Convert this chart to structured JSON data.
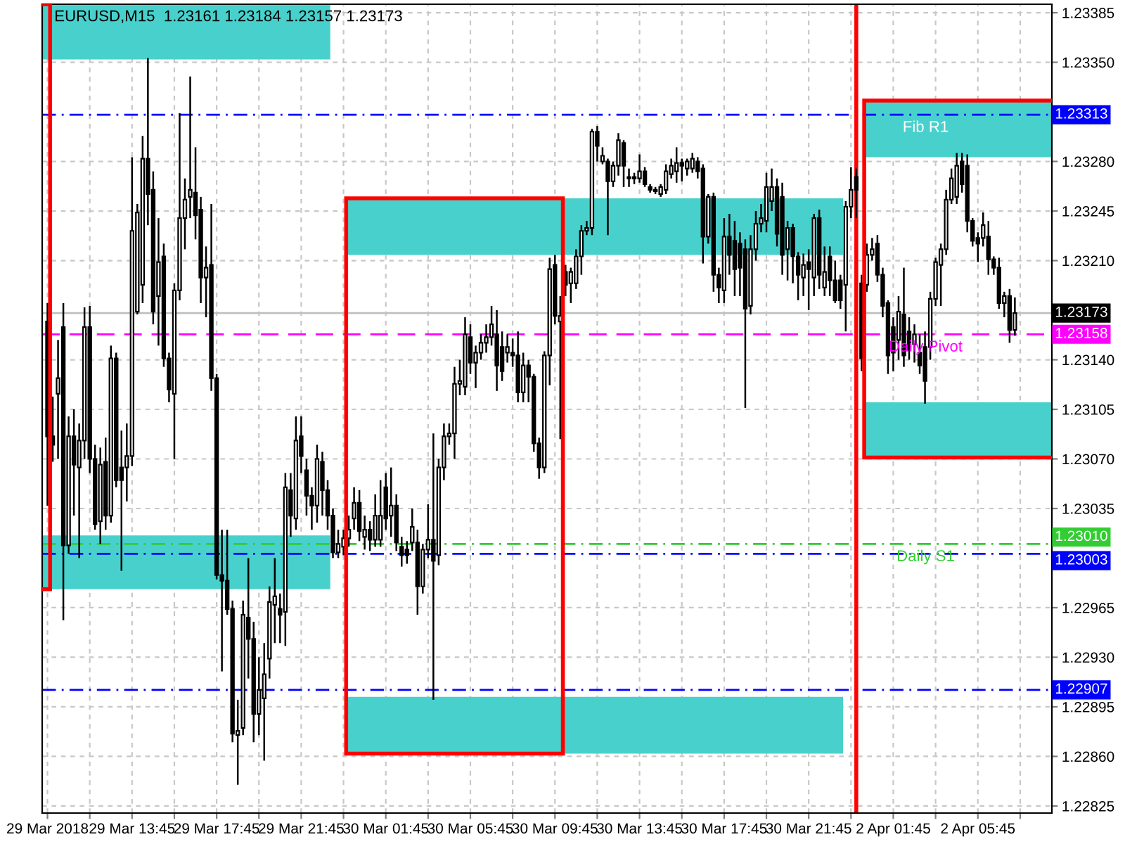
{
  "chart_data": {
    "type": "candlestick",
    "title": "EURUSD,M15  1.23161 1.23184 1.23157 1.23173",
    "categories": [
      "29 Mar 2018",
      null,
      null,
      null,
      null,
      null,
      null,
      null,
      null,
      null,
      null,
      null,
      null,
      null,
      null,
      null,
      "29 Mar 13:45",
      null,
      null,
      null,
      null,
      null,
      null,
      null,
      null,
      null,
      null,
      null,
      null,
      null,
      null,
      null,
      "29 Mar 17:45",
      null,
      null,
      null,
      null,
      null,
      null,
      null,
      null,
      null,
      null,
      null,
      null,
      null,
      null,
      null,
      "29 Mar 21:45",
      null,
      null,
      null,
      null,
      null,
      null,
      null,
      null,
      null,
      null,
      null,
      null,
      null,
      null,
      null,
      "30 Mar 01:45",
      null,
      null,
      null,
      null,
      null,
      null,
      null,
      null,
      null,
      null,
      null,
      null,
      null,
      null,
      null,
      "30 Mar 05:45",
      null,
      null,
      null,
      null,
      null,
      null,
      null,
      null,
      null,
      null,
      null,
      null,
      null,
      null,
      null,
      "30 Mar 09:45",
      null,
      null,
      null,
      null,
      null,
      null,
      null,
      null,
      null,
      null,
      null,
      null,
      null,
      null,
      null,
      "30 Mar 13:45",
      null,
      null,
      null,
      null,
      null,
      null,
      null,
      null,
      null,
      null,
      null,
      null,
      null,
      null,
      null,
      "30 Mar 17:45",
      null,
      null,
      null,
      null,
      null,
      null,
      null,
      null,
      null,
      null,
      null,
      null,
      null,
      null,
      null,
      "30 Mar 21:45",
      null,
      null,
      null,
      null,
      null,
      null,
      null,
      null,
      null,
      null,
      null,
      null,
      null,
      null,
      null,
      "2 Apr 01:45",
      null,
      null,
      null,
      null,
      null,
      null,
      null,
      null,
      null,
      null,
      null,
      null,
      null,
      null,
      null,
      "2 Apr 05:45",
      null,
      null,
      null,
      null,
      null,
      null,
      null
    ],
    "ohlc": [
      [
        1.23167,
        1.2318,
        1.23037,
        1.23086
      ],
      [
        1.23086,
        1.23114,
        1.23068,
        1.2308
      ],
      [
        1.23116,
        1.23154,
        1.2307,
        1.23127
      ],
      [
        1.23163,
        1.2318,
        1.22956,
        1.23009
      ],
      [
        1.23009,
        1.231,
        1.23003,
        1.23086
      ],
      [
        1.23086,
        1.23105,
        1.2303,
        1.23066
      ],
      [
        1.23064,
        1.23095,
        1.23,
        1.23083
      ],
      [
        1.23083,
        1.23177,
        1.2307,
        1.23163
      ],
      [
        1.23163,
        1.23178,
        1.2306,
        1.2307
      ],
      [
        1.2307,
        1.2308,
        1.2302,
        1.23024
      ],
      [
        1.23026,
        1.23078,
        1.2301,
        1.23066
      ],
      [
        1.23068,
        1.23085,
        1.2302,
        1.2303
      ],
      [
        1.2303,
        1.2315,
        1.23025,
        1.23141
      ],
      [
        1.23141,
        1.23145,
        1.2305,
        1.23055
      ],
      [
        1.23064,
        1.2309,
        1.22991,
        1.23055
      ],
      [
        1.23064,
        1.23095,
        1.2304,
        1.23072
      ],
      [
        1.23072,
        1.23283,
        1.23065,
        1.23231
      ],
      [
        1.23174,
        1.2325,
        1.23172,
        1.23244
      ],
      [
        1.23193,
        1.23298,
        1.2318,
        1.23282
      ],
      [
        1.23282,
        1.23353,
        1.23235,
        1.23257
      ],
      [
        1.2326,
        1.23273,
        1.23165,
        1.23174
      ],
      [
        1.23185,
        1.2324,
        1.2315,
        1.23209
      ],
      [
        1.23213,
        1.23222,
        1.23135,
        1.23141
      ],
      [
        1.23141,
        1.23145,
        1.2311,
        1.23119
      ],
      [
        1.23116,
        1.23194,
        1.2307,
        1.23189
      ],
      [
        1.23189,
        1.23314,
        1.23182,
        1.2324
      ],
      [
        1.2324,
        1.23268,
        1.23218,
        1.23253
      ],
      [
        1.23255,
        1.2334,
        1.2324,
        1.2326
      ],
      [
        1.23258,
        1.2329,
        1.23225,
        1.23242
      ],
      [
        1.23246,
        1.23255,
        1.2318,
        1.23198
      ],
      [
        1.23198,
        1.2322,
        1.2317,
        1.23205
      ],
      [
        1.23207,
        1.2325,
        1.23118,
        1.23127
      ],
      [
        1.23127,
        1.2313,
        1.22985,
        1.22988
      ],
      [
        1.22988,
        1.2302,
        1.2292,
        1.22984
      ],
      [
        1.22984,
        1.2302,
        1.2296,
        1.22964
      ],
      [
        1.22964,
        1.2297,
        1.2287,
        1.22876
      ],
      [
        1.22875,
        1.229,
        1.2284,
        1.22878
      ],
      [
        1.2288,
        1.2297,
        1.22875,
        1.2296
      ],
      [
        1.22958,
        1.23,
        1.22915,
        1.22943
      ],
      [
        1.22943,
        1.22955,
        1.2287,
        1.2289
      ],
      [
        1.2289,
        1.2293,
        1.22875,
        1.22907
      ],
      [
        1.22901,
        1.2294,
        1.22857,
        1.22918
      ],
      [
        1.22929,
        1.2298,
        1.22915,
        1.22969
      ],
      [
        1.22967,
        1.23,
        1.2294,
        1.22973
      ],
      [
        1.22964,
        1.22975,
        1.2294,
        1.2296
      ],
      [
        1.22962,
        1.2306,
        1.22938,
        1.2305
      ],
      [
        1.23048,
        1.2306,
        1.23015,
        1.2303
      ],
      [
        1.23028,
        1.231,
        1.2302,
        1.23083
      ],
      [
        1.23086,
        1.231,
        1.2306,
        1.23072
      ],
      [
        1.23062,
        1.2307,
        1.2303,
        1.23044
      ],
      [
        1.23044,
        1.2305,
        1.2302,
        1.23037
      ],
      [
        1.23037,
        1.2308,
        1.23025,
        1.2307
      ],
      [
        1.23068,
        1.23075,
        1.2303,
        1.23048
      ],
      [
        1.23048,
        1.23055,
        1.2302,
        1.2303
      ],
      [
        1.2303,
        1.23035,
        1.23,
        1.23004
      ],
      [
        1.23004,
        1.2302,
        1.23,
        1.2301
      ],
      [
        1.23008,
        1.2302,
        1.23002,
        1.23014
      ],
      [
        1.23014,
        1.2303,
        1.23008,
        1.2302
      ],
      [
        1.23028,
        1.2305,
        1.2302,
        1.23039
      ],
      [
        1.23039,
        1.23048,
        1.23012,
        1.23019
      ],
      [
        1.23015,
        1.2303,
        1.23006,
        1.2302
      ],
      [
        1.2302,
        1.23026,
        1.23005,
        1.23013
      ],
      [
        1.23013,
        1.23045,
        1.23008,
        1.2303
      ],
      [
        1.23013,
        1.23055,
        1.23008,
        1.2303
      ],
      [
        1.2305,
        1.2306,
        1.2302,
        1.23028
      ],
      [
        1.2303,
        1.23064,
        1.23015,
        1.23037
      ],
      [
        1.23037,
        1.23045,
        1.23005,
        1.23011
      ],
      [
        1.23008,
        1.23015,
        1.22994,
        1.23002
      ],
      [
        1.23006,
        1.23012,
        1.22996,
        1.23002
      ],
      [
        1.23011,
        1.23035,
        1.23005,
        1.23022
      ],
      [
        1.23011,
        1.2302,
        1.2296,
        1.2298
      ],
      [
        1.2298,
        1.2301,
        1.22975,
        1.23006
      ],
      [
        1.23006,
        1.23038,
        1.23,
        1.23013
      ],
      [
        1.23013,
        1.23088,
        1.229,
        1.22998
      ],
      [
        1.23002,
        1.2307,
        1.22995,
        1.23064
      ],
      [
        1.23064,
        1.23095,
        1.23055,
        1.23086
      ],
      [
        1.23086,
        1.23095,
        1.2308,
        1.23088
      ],
      [
        1.23088,
        1.23135,
        1.2307,
        1.23123
      ],
      [
        1.23123,
        1.2314,
        1.23115,
        1.23125
      ],
      [
        1.23121,
        1.2317,
        1.23115,
        1.23158
      ],
      [
        1.23156,
        1.23165,
        1.2313,
        1.23138
      ],
      [
        1.23138,
        1.2315,
        1.2312,
        1.23145
      ],
      [
        1.23145,
        1.23158,
        1.2314,
        1.23152
      ],
      [
        1.23152,
        1.23165,
        1.23145,
        1.23156
      ],
      [
        1.23156,
        1.23178,
        1.2315,
        1.23165
      ],
      [
        1.23158,
        1.23175,
        1.23118,
        1.23136
      ],
      [
        1.23149,
        1.2316,
        1.23125,
        1.23132
      ],
      [
        1.23145,
        1.23158,
        1.23138,
        1.23149
      ],
      [
        1.23145,
        1.23155,
        1.23135,
        1.23143
      ],
      [
        1.23143,
        1.2316,
        1.2311,
        1.23117
      ],
      [
        1.23117,
        1.23145,
        1.2311,
        1.23136
      ],
      [
        1.23136,
        1.2314,
        1.2311,
        1.23128
      ],
      [
        1.23128,
        1.2313,
        1.23075,
        1.23081
      ],
      [
        1.23081,
        1.23085,
        1.23056,
        1.23064
      ],
      [
        1.23064,
        1.23146,
        1.2306,
        1.23143
      ],
      [
        1.23143,
        1.23212,
        1.23122,
        1.23204
      ],
      [
        1.23207,
        1.23214,
        1.23165,
        1.23171
      ],
      [
        1.23167,
        1.23185,
        1.23084,
        1.23171
      ],
      [
        1.23202,
        1.23207,
        1.23185,
        1.23193
      ],
      [
        1.23194,
        1.23205,
        1.2318,
        1.23202
      ],
      [
        1.23194,
        1.23218,
        1.2319,
        1.23213
      ],
      [
        1.23213,
        1.23235,
        1.232,
        1.23231
      ],
      [
        1.23231,
        1.23238,
        1.23228,
        1.23233
      ],
      [
        1.23233,
        1.23303,
        1.23228,
        1.23301
      ],
      [
        1.23301,
        1.23305,
        1.2328,
        1.23291
      ],
      [
        1.2328,
        1.2329,
        1.23278,
        1.23284
      ],
      [
        1.2328,
        1.23282,
        1.23228,
        1.23266
      ],
      [
        1.23266,
        1.2328,
        1.23262,
        1.23277
      ],
      [
        1.23277,
        1.233,
        1.2327,
        1.23295
      ],
      [
        1.23293,
        1.23295,
        1.23262,
        1.23277
      ],
      [
        1.23269,
        1.23275,
        1.23262,
        1.23268
      ],
      [
        1.23268,
        1.23272,
        1.23264,
        1.23269
      ],
      [
        1.23268,
        1.23285,
        1.23265,
        1.23273
      ],
      [
        1.23273,
        1.23276,
        1.23262,
        1.23264
      ],
      [
        1.23262,
        1.23264,
        1.23258,
        1.2326
      ],
      [
        1.2326,
        1.23262,
        1.23257,
        1.23259
      ],
      [
        1.23257,
        1.23264,
        1.23255,
        1.23262
      ],
      [
        1.2326,
        1.23278,
        1.23257,
        1.23273
      ],
      [
        1.23271,
        1.23282,
        1.23268,
        1.23277
      ],
      [
        1.23273,
        1.2329,
        1.23265,
        1.23279
      ],
      [
        1.23279,
        1.23282,
        1.23266,
        1.23277
      ],
      [
        1.23275,
        1.23282,
        1.2327,
        1.2328
      ],
      [
        1.23275,
        1.23286,
        1.23272,
        1.23282
      ],
      [
        1.2328,
        1.23283,
        1.23268,
        1.23273
      ],
      [
        1.23275,
        1.23278,
        1.23208,
        1.23227
      ],
      [
        1.23227,
        1.23257,
        1.23222,
        1.23255
      ],
      [
        1.23255,
        1.23258,
        1.23188,
        1.232
      ],
      [
        1.232,
        1.23205,
        1.2318,
        1.23191
      ],
      [
        1.23189,
        1.2324,
        1.2318,
        1.23227
      ],
      [
        1.23227,
        1.23243,
        1.232,
        1.23214
      ],
      [
        1.23224,
        1.23238,
        1.23185,
        1.23204
      ],
      [
        1.23222,
        1.2323,
        1.23185,
        1.23205
      ],
      [
        1.23218,
        1.23225,
        1.23106,
        1.23176
      ],
      [
        1.23178,
        1.23228,
        1.23172,
        1.23218
      ],
      [
        1.23218,
        1.23245,
        1.2321,
        1.23236
      ],
      [
        1.23236,
        1.2325,
        1.2323,
        1.2324
      ],
      [
        1.23238,
        1.23272,
        1.2323,
        1.23262
      ],
      [
        1.23252,
        1.23275,
        1.23245,
        1.23262
      ],
      [
        1.23262,
        1.23268,
        1.2322,
        1.23229
      ],
      [
        1.23255,
        1.23265,
        1.232,
        1.23214
      ],
      [
        1.23218,
        1.23238,
        1.23196,
        1.23233
      ],
      [
        1.23233,
        1.23236,
        1.23194,
        1.23213
      ],
      [
        1.23213,
        1.23216,
        1.23182,
        1.232
      ],
      [
        1.23198,
        1.23215,
        1.23185,
        1.23207
      ],
      [
        1.23209,
        1.23218,
        1.23175,
        1.23204
      ],
      [
        1.23198,
        1.23243,
        1.23185,
        1.2324
      ],
      [
        1.2324,
        1.23246,
        1.2319,
        1.232
      ],
      [
        1.23191,
        1.2322,
        1.23185,
        1.23202
      ],
      [
        1.23213,
        1.2322,
        1.23185,
        1.23196
      ],
      [
        1.23196,
        1.2321,
        1.2318,
        1.23182
      ],
      [
        1.23196,
        1.232,
        1.23176,
        1.23182
      ],
      [
        1.23193,
        1.23252,
        1.2316,
        1.23248
      ],
      [
        1.23248,
        1.23276,
        1.2324,
        1.2326
      ],
      [
        1.23269,
        1.23275,
        1.2324,
        1.2326
      ],
      [
        1.23194,
        1.232,
        1.23132,
        1.23141
      ],
      [
        1.23193,
        1.23222,
        1.23188,
        1.23214
      ],
      [
        1.23214,
        1.23226,
        1.2321,
        1.23218
      ],
      [
        1.23222,
        1.23228,
        1.23195,
        1.232
      ],
      [
        1.232,
        1.23205,
        1.2317,
        1.23178
      ],
      [
        1.2318,
        1.23182,
        1.2313,
        1.23143
      ],
      [
        1.23163,
        1.2317,
        1.23132,
        1.23145
      ],
      [
        1.23154,
        1.23185,
        1.2314,
        1.23174
      ],
      [
        1.23172,
        1.23205,
        1.23135,
        1.23143
      ],
      [
        1.2316,
        1.2317,
        1.2314,
        1.23147
      ],
      [
        1.23151,
        1.23165,
        1.23138,
        1.23158
      ],
      [
        1.23145,
        1.23158,
        1.2313,
        1.23136
      ],
      [
        1.23149,
        1.2316,
        1.23109,
        1.23125
      ],
      [
        1.23149,
        1.23188,
        1.2314,
        1.23183
      ],
      [
        1.23183,
        1.23212,
        1.23178,
        1.23209
      ],
      [
        1.23207,
        1.23222,
        1.23178,
        1.23218
      ],
      [
        1.23218,
        1.2326,
        1.23214,
        1.23253
      ],
      [
        1.23253,
        1.23275,
        1.2325,
        1.23268
      ],
      [
        1.23255,
        1.23286,
        1.2325,
        1.23277
      ],
      [
        1.2328,
        1.23286,
        1.23258,
        1.23264
      ],
      [
        1.23277,
        1.23285,
        1.2323,
        1.23238
      ],
      [
        1.23238,
        1.2324,
        1.2322,
        1.23224
      ],
      [
        1.23226,
        1.2323,
        1.23209,
        1.23222
      ],
      [
        1.23226,
        1.23244,
        1.2322,
        1.23235
      ],
      [
        1.23227,
        1.23238,
        1.232,
        1.23211
      ],
      [
        1.23211,
        1.23213,
        1.232,
        1.23205
      ],
      [
        1.23205,
        1.23212,
        1.23176,
        1.2318
      ],
      [
        1.2318,
        1.23188,
        1.2317,
        1.23185
      ],
      [
        1.23185,
        1.2319,
        1.23152,
        1.23161
      ],
      [
        1.23161,
        1.23184,
        1.23157,
        1.23173
      ]
    ],
    "ylim": [
      1.2282,
      1.23391
    ],
    "yticks": [
      {
        "value": 1.23385,
        "label": "1.23385"
      },
      {
        "value": 1.2335,
        "label": "1.23350"
      },
      {
        "value": 1.2328,
        "label": "1.23280"
      },
      {
        "value": 1.23245,
        "label": "1.23245"
      },
      {
        "value": 1.2321,
        "label": "1.23210"
      },
      {
        "value": 1.2314,
        "label": "1.23140"
      },
      {
        "value": 1.23105,
        "label": "1.23105"
      },
      {
        "value": 1.2307,
        "label": "1.23070"
      },
      {
        "value": 1.23035,
        "label": "1.23035"
      },
      {
        "value": 1.22965,
        "label": "1.22965"
      },
      {
        "value": 1.2293,
        "label": "1.22930"
      },
      {
        "value": 1.22895,
        "label": "1.22895"
      },
      {
        "value": 1.2286,
        "label": "1.22860"
      },
      {
        "value": 1.22825,
        "label": "1.22825"
      }
    ],
    "grid": true,
    "bands": [
      {
        "axis": "y",
        "from": 1.23352,
        "to": 1.23391,
        "color": "#48d1cc"
      },
      {
        "axis": "y",
        "from": 1.22978,
        "to": 1.23016,
        "color": "#48d1cc"
      },
      {
        "axis": "y",
        "from": 1.23214,
        "to": 1.23254,
        "color": "#48d1cc"
      },
      {
        "axis": "y",
        "from": 1.22862,
        "to": 1.22902,
        "color": "#48d1cc"
      },
      {
        "axis": "y",
        "from": 1.23283,
        "to": 1.23323,
        "color": "#48d1cc"
      },
      {
        "axis": "y",
        "from": 1.23071,
        "to": 1.2311,
        "color": "#48d1cc"
      }
    ],
    "ref_lines": [
      {
        "axis": "y",
        "value": 1.23313,
        "label": "1.23313",
        "color": "#0000ff",
        "line_style": "dashdot"
      },
      {
        "axis": "y",
        "value": 1.23173,
        "label": "1.23173",
        "color": "#c0c0c0",
        "line_style": "solid"
      },
      {
        "axis": "y",
        "value": 1.23158,
        "label": "1.23158",
        "color": "#ff00ff",
        "line_style": "dashed"
      },
      {
        "axis": "y",
        "value": 1.2301,
        "label": "1.23010",
        "color": "#32cd32",
        "line_style": "dashdot"
      },
      {
        "axis": "y",
        "value": 1.23003,
        "label": "1.23003",
        "color": "#0000ff",
        "line_style": "dashdot"
      },
      {
        "axis": "y",
        "value": 1.22907,
        "label": "1.22907",
        "color": "#0000ff",
        "line_style": "dashdot"
      }
    ],
    "annotations": [
      {
        "text": "Fib R1",
        "y": 1.23313
      },
      {
        "text": "Daily Pivot",
        "y": 1.23158
      },
      {
        "text": "Daily S1",
        "y": 1.2301
      }
    ]
  }
}
